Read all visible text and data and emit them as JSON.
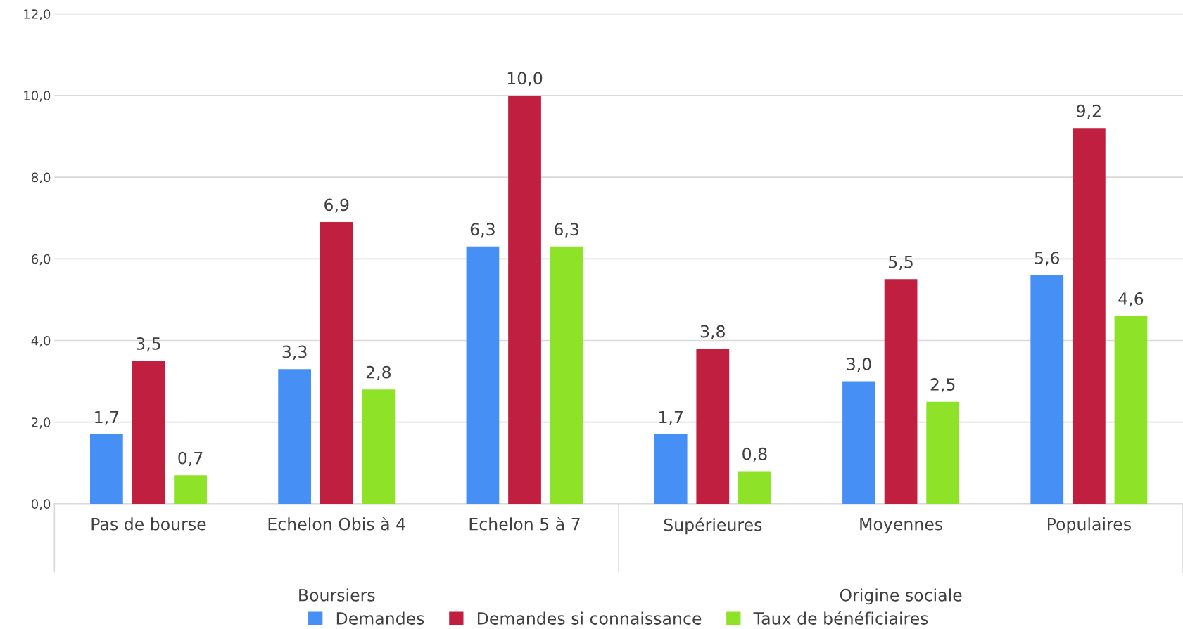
{
  "chart_data": {
    "type": "bar",
    "categories": [
      "Pas de bourse",
      "Echelon Obis à 4",
      "Echelon 5 à 7",
      "Supérieures",
      "Moyennes",
      "Populaires"
    ],
    "series": [
      {
        "name": "Demandes",
        "color": "#4690f5",
        "values": [
          1.7,
          3.3,
          6.3,
          1.7,
          3.0,
          5.6
        ],
        "value_labels": [
          "1,7",
          "3,3",
          "6,3",
          "1,7",
          "3,0",
          "5,6"
        ]
      },
      {
        "name": "Demandes si connaissance",
        "color": "#c01f40",
        "values": [
          3.5,
          6.9,
          10.0,
          3.8,
          5.5,
          9.2
        ],
        "value_labels": [
          "3,5",
          "6,9",
          "10,0",
          "3,8",
          "5,5",
          "9,2"
        ]
      },
      {
        "name": "Taux de bénéficiaires",
        "color": "#8ee329",
        "values": [
          0.7,
          2.8,
          6.3,
          0.8,
          2.5,
          4.6
        ],
        "value_labels": [
          "0,7",
          "2,8",
          "6,3",
          "0,8",
          "2,5",
          "4,6"
        ]
      }
    ],
    "annotations": [
      "Boursiers",
      "Origine sociale"
    ],
    "ylim": [
      0,
      12
    ],
    "yticks": [
      {
        "value": 0,
        "label": "0,0"
      },
      {
        "value": 2,
        "label": "2,0"
      },
      {
        "value": 4,
        "label": "4,0"
      },
      {
        "value": 6,
        "label": "6,0"
      },
      {
        "value": 8,
        "label": "8,0"
      },
      {
        "value": 10,
        "label": "10,0"
      },
      {
        "value": 12,
        "label": "12,0"
      }
    ],
    "grid": "y",
    "legend": "bottom"
  }
}
